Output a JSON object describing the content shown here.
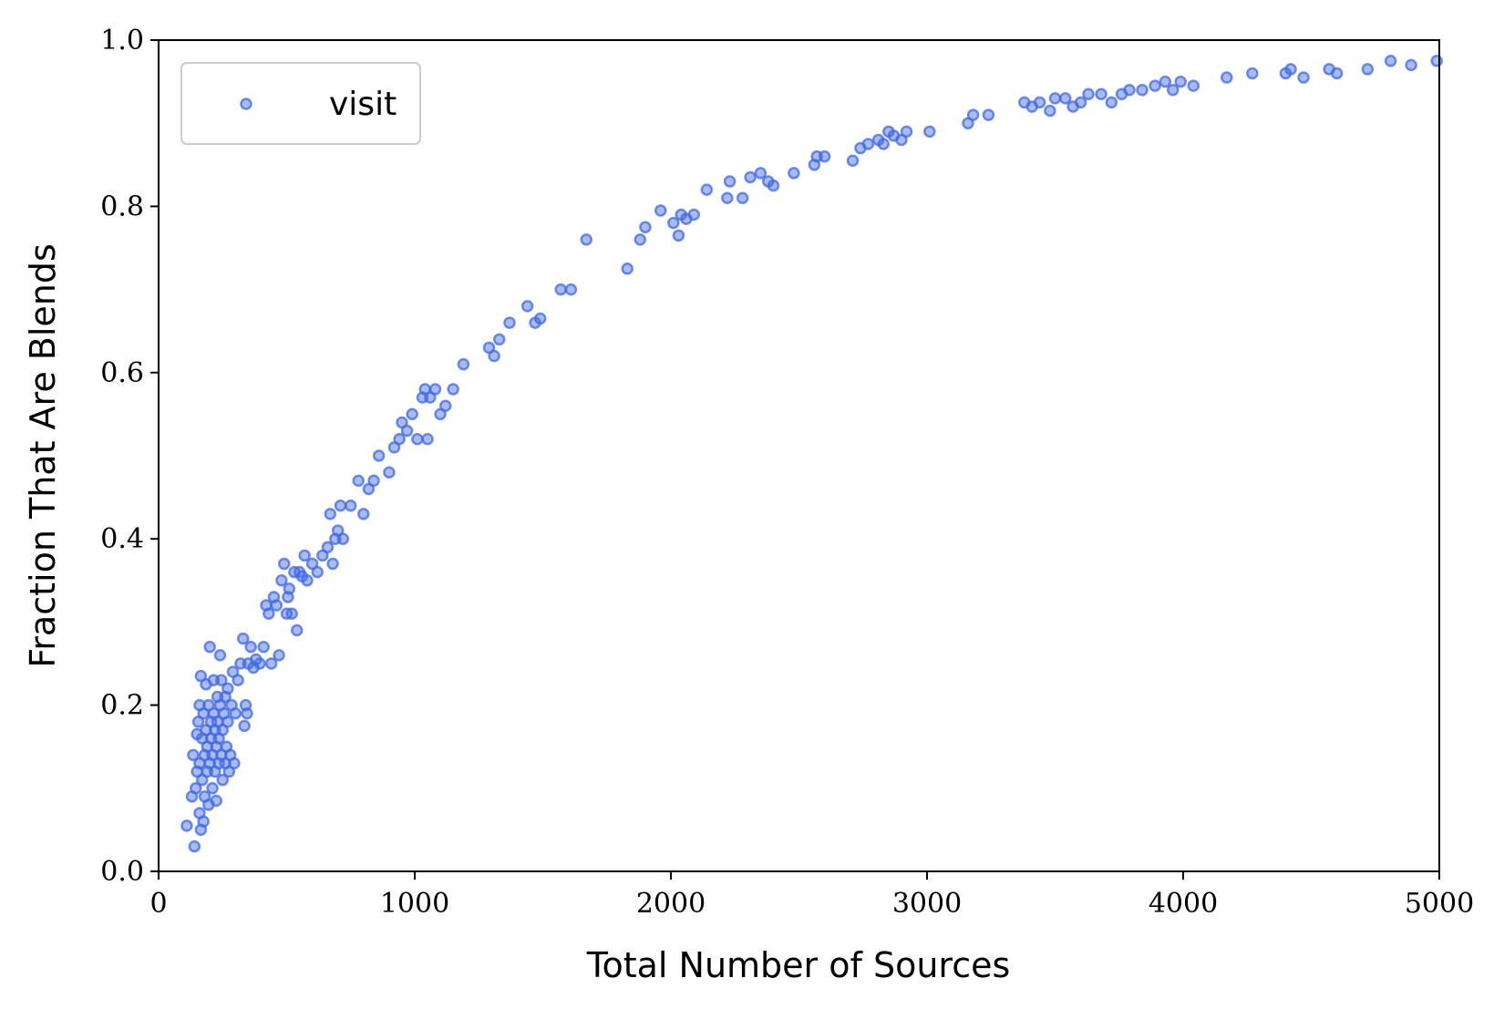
{
  "chart_data": {
    "type": "scatter",
    "title": "",
    "xlabel": "Total Number of Sources",
    "ylabel": "Fraction That Are Blends",
    "xlim": [
      0,
      5000
    ],
    "ylim": [
      0.0,
      1.0
    ],
    "xticks": [
      0,
      1000,
      2000,
      3000,
      4000,
      5000
    ],
    "xtick_labels": [
      "0",
      "1000",
      "2000",
      "3000",
      "4000",
      "5000"
    ],
    "yticks": [
      0.0,
      0.2,
      0.4,
      0.6,
      0.8,
      1.0
    ],
    "ytick_labels": [
      "0.0",
      "0.2",
      "0.4",
      "0.6",
      "0.8",
      "1.0"
    ],
    "grid": false,
    "legend_position": "top-left",
    "marker_color": "#4169e1",
    "series": [
      {
        "name": "visit",
        "points": [
          [
            110,
            0.055
          ],
          [
            130,
            0.09
          ],
          [
            135,
            0.14
          ],
          [
            140,
            0.03
          ],
          [
            145,
            0.1
          ],
          [
            150,
            0.12
          ],
          [
            150,
            0.165
          ],
          [
            155,
            0.18
          ],
          [
            160,
            0.07
          ],
          [
            160,
            0.13
          ],
          [
            160,
            0.2
          ],
          [
            165,
            0.235
          ],
          [
            165,
            0.05
          ],
          [
            170,
            0.11
          ],
          [
            170,
            0.16
          ],
          [
            175,
            0.19
          ],
          [
            175,
            0.06
          ],
          [
            180,
            0.14
          ],
          [
            180,
            0.09
          ],
          [
            185,
            0.17
          ],
          [
            185,
            0.225
          ],
          [
            190,
            0.12
          ],
          [
            190,
            0.15
          ],
          [
            195,
            0.08
          ],
          [
            195,
            0.2
          ],
          [
            200,
            0.27
          ],
          [
            200,
            0.13
          ],
          [
            205,
            0.16
          ],
          [
            205,
            0.18
          ],
          [
            210,
            0.1
          ],
          [
            210,
            0.14
          ],
          [
            215,
            0.19
          ],
          [
            215,
            0.23
          ],
          [
            220,
            0.12
          ],
          [
            220,
            0.17
          ],
          [
            225,
            0.085
          ],
          [
            225,
            0.15
          ],
          [
            230,
            0.21
          ],
          [
            230,
            0.18
          ],
          [
            235,
            0.13
          ],
          [
            235,
            0.16
          ],
          [
            240,
            0.26
          ],
          [
            240,
            0.2
          ],
          [
            245,
            0.14
          ],
          [
            245,
            0.23
          ],
          [
            250,
            0.11
          ],
          [
            250,
            0.17
          ],
          [
            255,
            0.19
          ],
          [
            260,
            0.13
          ],
          [
            260,
            0.21
          ],
          [
            265,
            0.15
          ],
          [
            270,
            0.18
          ],
          [
            270,
            0.22
          ],
          [
            275,
            0.12
          ],
          [
            280,
            0.14
          ],
          [
            285,
            0.2
          ],
          [
            290,
            0.24
          ],
          [
            295,
            0.13
          ],
          [
            300,
            0.19
          ],
          [
            310,
            0.23
          ],
          [
            320,
            0.25
          ],
          [
            330,
            0.28
          ],
          [
            335,
            0.175
          ],
          [
            340,
            0.2
          ],
          [
            345,
            0.19
          ],
          [
            350,
            0.25
          ],
          [
            360,
            0.27
          ],
          [
            370,
            0.245
          ],
          [
            380,
            0.255
          ],
          [
            395,
            0.25
          ],
          [
            410,
            0.27
          ],
          [
            420,
            0.32
          ],
          [
            430,
            0.31
          ],
          [
            440,
            0.25
          ],
          [
            450,
            0.33
          ],
          [
            460,
            0.32
          ],
          [
            470,
            0.26
          ],
          [
            480,
            0.35
          ],
          [
            490,
            0.37
          ],
          [
            500,
            0.31
          ],
          [
            505,
            0.33
          ],
          [
            510,
            0.34
          ],
          [
            520,
            0.31
          ],
          [
            530,
            0.36
          ],
          [
            540,
            0.29
          ],
          [
            550,
            0.36
          ],
          [
            560,
            0.355
          ],
          [
            570,
            0.38
          ],
          [
            580,
            0.35
          ],
          [
            600,
            0.37
          ],
          [
            620,
            0.36
          ],
          [
            640,
            0.38
          ],
          [
            660,
            0.39
          ],
          [
            670,
            0.43
          ],
          [
            680,
            0.37
          ],
          [
            690,
            0.4
          ],
          [
            700,
            0.41
          ],
          [
            710,
            0.44
          ],
          [
            720,
            0.4
          ],
          [
            750,
            0.44
          ],
          [
            780,
            0.47
          ],
          [
            800,
            0.43
          ],
          [
            820,
            0.46
          ],
          [
            840,
            0.47
          ],
          [
            860,
            0.5
          ],
          [
            900,
            0.48
          ],
          [
            920,
            0.51
          ],
          [
            940,
            0.52
          ],
          [
            950,
            0.54
          ],
          [
            970,
            0.53
          ],
          [
            990,
            0.55
          ],
          [
            1010,
            0.52
          ],
          [
            1030,
            0.57
          ],
          [
            1040,
            0.58
          ],
          [
            1050,
            0.52
          ],
          [
            1060,
            0.57
          ],
          [
            1080,
            0.58
          ],
          [
            1100,
            0.55
          ],
          [
            1120,
            0.56
          ],
          [
            1150,
            0.58
          ],
          [
            1190,
            0.61
          ],
          [
            1290,
            0.63
          ],
          [
            1310,
            0.62
          ],
          [
            1330,
            0.64
          ],
          [
            1370,
            0.66
          ],
          [
            1440,
            0.68
          ],
          [
            1470,
            0.66
          ],
          [
            1490,
            0.665
          ],
          [
            1570,
            0.7
          ],
          [
            1610,
            0.7
          ],
          [
            1670,
            0.76
          ],
          [
            1830,
            0.725
          ],
          [
            1880,
            0.76
          ],
          [
            1900,
            0.775
          ],
          [
            1960,
            0.795
          ],
          [
            2010,
            0.78
          ],
          [
            2030,
            0.765
          ],
          [
            2040,
            0.79
          ],
          [
            2060,
            0.785
          ],
          [
            2090,
            0.79
          ],
          [
            2140,
            0.82
          ],
          [
            2220,
            0.81
          ],
          [
            2230,
            0.83
          ],
          [
            2280,
            0.81
          ],
          [
            2310,
            0.835
          ],
          [
            2350,
            0.84
          ],
          [
            2380,
            0.83
          ],
          [
            2400,
            0.825
          ],
          [
            2480,
            0.84
          ],
          [
            2560,
            0.85
          ],
          [
            2570,
            0.86
          ],
          [
            2600,
            0.86
          ],
          [
            2710,
            0.855
          ],
          [
            2740,
            0.87
          ],
          [
            2770,
            0.875
          ],
          [
            2810,
            0.88
          ],
          [
            2830,
            0.875
          ],
          [
            2850,
            0.89
          ],
          [
            2870,
            0.885
          ],
          [
            2900,
            0.88
          ],
          [
            2920,
            0.89
          ],
          [
            3010,
            0.89
          ],
          [
            3160,
            0.9
          ],
          [
            3180,
            0.91
          ],
          [
            3240,
            0.91
          ],
          [
            3380,
            0.925
          ],
          [
            3410,
            0.92
          ],
          [
            3440,
            0.925
          ],
          [
            3480,
            0.915
          ],
          [
            3500,
            0.93
          ],
          [
            3540,
            0.93
          ],
          [
            3570,
            0.92
          ],
          [
            3600,
            0.925
          ],
          [
            3630,
            0.935
          ],
          [
            3680,
            0.935
          ],
          [
            3720,
            0.925
          ],
          [
            3760,
            0.935
          ],
          [
            3790,
            0.94
          ],
          [
            3840,
            0.94
          ],
          [
            3890,
            0.945
          ],
          [
            3930,
            0.95
          ],
          [
            3960,
            0.94
          ],
          [
            3990,
            0.95
          ],
          [
            4040,
            0.945
          ],
          [
            4170,
            0.955
          ],
          [
            4270,
            0.96
          ],
          [
            4400,
            0.96
          ],
          [
            4420,
            0.965
          ],
          [
            4470,
            0.955
          ],
          [
            4570,
            0.965
          ],
          [
            4600,
            0.96
          ],
          [
            4720,
            0.965
          ],
          [
            4810,
            0.975
          ],
          [
            4890,
            0.97
          ],
          [
            4990,
            0.975
          ]
        ]
      }
    ]
  }
}
